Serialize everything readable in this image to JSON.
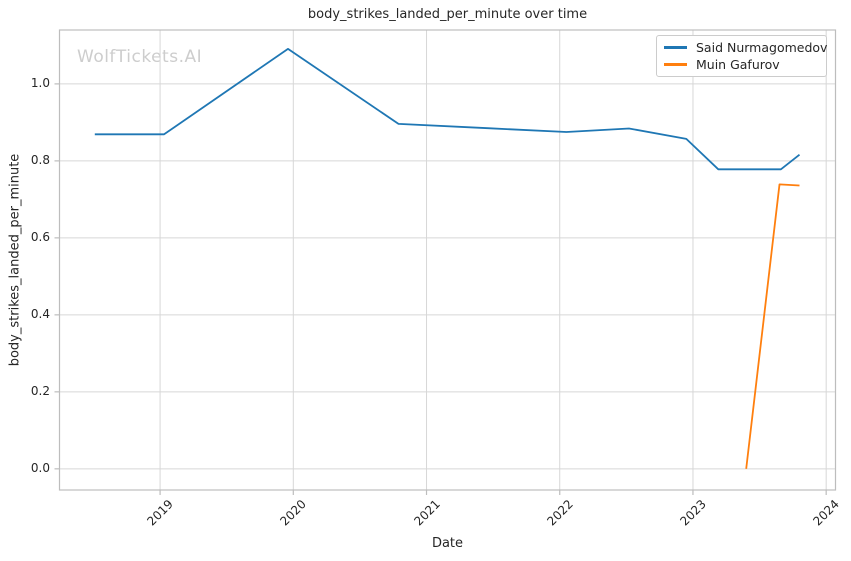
{
  "watermark": "WolfTickets.AI",
  "style": {
    "background": "#ffffff",
    "grid_color": "#d7d7d7",
    "spine_color": "#bdbdbd",
    "text_color": "#262626",
    "watermark_color": "#cdcdcd"
  },
  "chart_data": {
    "type": "line",
    "title": "body_strikes_landed_per_minute over time",
    "xlabel": "Date",
    "ylabel": "body_strikes_landed_per_minute",
    "x_unit": "decimal_year",
    "xlim": [
      2018.245,
      2024.07
    ],
    "ylim": [
      -0.055,
      1.14
    ],
    "grid": true,
    "legend_position": "upper right",
    "x_ticks": {
      "values": [
        2019,
        2020,
        2021,
        2022,
        2023,
        2024
      ],
      "labels": [
        "2019",
        "2020",
        "2021",
        "2022",
        "2023",
        "2024"
      ],
      "rotation": 45
    },
    "y_ticks": {
      "values": [
        0.0,
        0.2,
        0.4,
        0.6,
        0.8,
        1.0
      ],
      "labels": [
        "0.0",
        "0.2",
        "0.4",
        "0.6",
        "0.8",
        "1.0"
      ]
    },
    "series": [
      {
        "name": "Said Nurmagomedov",
        "color": "#1f77b4",
        "x": [
          2018.51,
          2019.03,
          2019.96,
          2020.79,
          2021.46,
          2022.05,
          2022.52,
          2022.95,
          2023.19,
          2023.66,
          2023.8
        ],
        "y": [
          0.869,
          0.869,
          1.091,
          0.896,
          0.885,
          0.875,
          0.884,
          0.857,
          0.778,
          0.778,
          0.816
        ]
      },
      {
        "name": "Muin Gafurov",
        "color": "#ff7f0e",
        "x": [
          2023.4,
          2023.65,
          2023.8
        ],
        "y": [
          0.0,
          0.739,
          0.736
        ]
      }
    ]
  }
}
